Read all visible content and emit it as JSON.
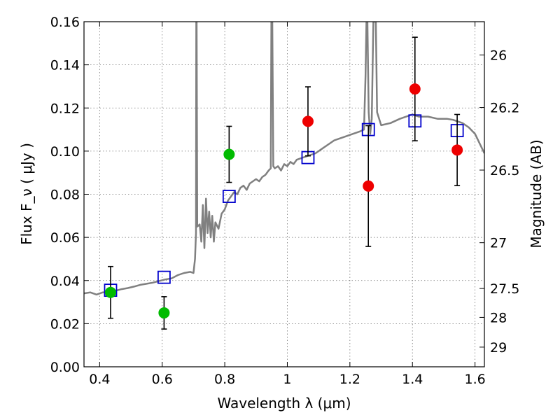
{
  "chart_data": {
    "type": "scatter",
    "xlabel": "Wavelength  λ (μm)",
    "ylabel": "Flux  F_ν  ( μJy )",
    "ylabel_right": "Magnitude (AB)",
    "xlim": [
      0.35,
      1.63
    ],
    "ylim": [
      0.0,
      0.16
    ],
    "grid": true,
    "x_ticks": [
      {
        "value": 0.4,
        "label": "0.4"
      },
      {
        "value": 0.6,
        "label": "0.6"
      },
      {
        "value": 0.8,
        "label": "0.8"
      },
      {
        "value": 1.0,
        "label": "1"
      },
      {
        "value": 1.2,
        "label": "1.2"
      },
      {
        "value": 1.4,
        "label": "1.4"
      },
      {
        "value": 1.6,
        "label": "1.6"
      }
    ],
    "y_ticks": [
      {
        "value": 0.0,
        "label": "0.00"
      },
      {
        "value": 0.02,
        "label": "0.02"
      },
      {
        "value": 0.04,
        "label": "0.04"
      },
      {
        "value": 0.06,
        "label": "0.06"
      },
      {
        "value": 0.08,
        "label": "0.08"
      },
      {
        "value": 0.1,
        "label": "0.10"
      },
      {
        "value": 0.12,
        "label": "0.12"
      },
      {
        "value": 0.14,
        "label": "0.14"
      },
      {
        "value": 0.16,
        "label": "0.16"
      }
    ],
    "right_ticks": [
      {
        "value": 26,
        "label": "26"
      },
      {
        "value": 26.2,
        "label": "26.2"
      },
      {
        "value": 26.5,
        "label": "26.5"
      },
      {
        "value": 27,
        "label": "27"
      },
      {
        "value": 27.5,
        "label": "27.5"
      },
      {
        "value": 28,
        "label": "28"
      },
      {
        "value": 29,
        "label": "29"
      }
    ],
    "colors": {
      "spectrum": "#808080",
      "green_points": "#00bb00",
      "red_points": "#ee0000",
      "model_boxes": "#0000cc",
      "errorbars": "#000000"
    },
    "green_points": [
      {
        "x": 0.435,
        "y": 0.0345,
        "yerr": 0.012
      },
      {
        "x": 0.606,
        "y": 0.025,
        "yerr": 0.0075
      },
      {
        "x": 0.814,
        "y": 0.0985,
        "yerr": 0.013
      }
    ],
    "red_points": [
      {
        "x": 1.066,
        "y": 0.1138,
        "yerr": 0.016
      },
      {
        "x": 1.259,
        "y": 0.0838,
        "yerr": 0.028
      },
      {
        "x": 1.408,
        "y": 0.1288,
        "yerr": 0.024
      },
      {
        "x": 1.543,
        "y": 0.1005,
        "yerr": 0.0165
      }
    ],
    "model_points": [
      {
        "x": 0.435,
        "y": 0.0355
      },
      {
        "x": 0.606,
        "y": 0.0415
      },
      {
        "x": 0.814,
        "y": 0.079
      },
      {
        "x": 1.066,
        "y": 0.097
      },
      {
        "x": 1.259,
        "y": 0.11
      },
      {
        "x": 1.408,
        "y": 0.114
      },
      {
        "x": 1.543,
        "y": 0.1095
      }
    ],
    "spectrum": [
      [
        0.35,
        0.034
      ],
      [
        0.37,
        0.0345
      ],
      [
        0.39,
        0.0335
      ],
      [
        0.41,
        0.0345
      ],
      [
        0.43,
        0.0348
      ],
      [
        0.45,
        0.0352
      ],
      [
        0.47,
        0.036
      ],
      [
        0.49,
        0.0365
      ],
      [
        0.51,
        0.0372
      ],
      [
        0.53,
        0.038
      ],
      [
        0.55,
        0.0385
      ],
      [
        0.57,
        0.039
      ],
      [
        0.59,
        0.0398
      ],
      [
        0.61,
        0.0405
      ],
      [
        0.63,
        0.041
      ],
      [
        0.65,
        0.0425
      ],
      [
        0.67,
        0.0435
      ],
      [
        0.69,
        0.044
      ],
      [
        0.7,
        0.0435
      ],
      [
        0.705,
        0.05
      ],
      [
        0.708,
        0.062
      ],
      [
        0.709,
        0.16
      ],
      [
        0.71,
        0.16
      ],
      [
        0.712,
        0.065
      ],
      [
        0.72,
        0.066
      ],
      [
        0.725,
        0.058
      ],
      [
        0.73,
        0.075
      ],
      [
        0.735,
        0.055
      ],
      [
        0.74,
        0.078
      ],
      [
        0.745,
        0.062
      ],
      [
        0.75,
        0.072
      ],
      [
        0.755,
        0.06
      ],
      [
        0.76,
        0.07
      ],
      [
        0.765,
        0.058
      ],
      [
        0.77,
        0.067
      ],
      [
        0.78,
        0.064
      ],
      [
        0.79,
        0.071
      ],
      [
        0.8,
        0.073
      ],
      [
        0.81,
        0.077
      ],
      [
        0.82,
        0.079
      ],
      [
        0.83,
        0.081
      ],
      [
        0.84,
        0.08
      ],
      [
        0.85,
        0.083
      ],
      [
        0.86,
        0.084
      ],
      [
        0.87,
        0.082
      ],
      [
        0.88,
        0.085
      ],
      [
        0.89,
        0.086
      ],
      [
        0.9,
        0.087
      ],
      [
        0.91,
        0.086
      ],
      [
        0.92,
        0.088
      ],
      [
        0.93,
        0.089
      ],
      [
        0.94,
        0.091
      ],
      [
        0.947,
        0.092
      ],
      [
        0.949,
        0.16
      ],
      [
        0.952,
        0.16
      ],
      [
        0.955,
        0.093
      ],
      [
        0.96,
        0.092
      ],
      [
        0.97,
        0.093
      ],
      [
        0.98,
        0.091
      ],
      [
        0.99,
        0.094
      ],
      [
        1.0,
        0.093
      ],
      [
        1.01,
        0.095
      ],
      [
        1.02,
        0.094
      ],
      [
        1.03,
        0.096
      ],
      [
        1.05,
        0.097
      ],
      [
        1.07,
        0.098
      ],
      [
        1.09,
        0.099
      ],
      [
        1.11,
        0.101
      ],
      [
        1.13,
        0.103
      ],
      [
        1.15,
        0.105
      ],
      [
        1.17,
        0.106
      ],
      [
        1.19,
        0.107
      ],
      [
        1.21,
        0.108
      ],
      [
        1.23,
        0.109
      ],
      [
        1.245,
        0.11
      ],
      [
        1.25,
        0.135
      ],
      [
        1.253,
        0.16
      ],
      [
        1.256,
        0.16
      ],
      [
        1.26,
        0.118
      ],
      [
        1.265,
        0.108
      ],
      [
        1.27,
        0.115
      ],
      [
        1.275,
        0.16
      ],
      [
        1.283,
        0.16
      ],
      [
        1.287,
        0.118
      ],
      [
        1.3,
        0.112
      ],
      [
        1.33,
        0.113
      ],
      [
        1.36,
        0.115
      ],
      [
        1.38,
        0.116
      ],
      [
        1.4,
        0.117
      ],
      [
        1.42,
        0.116
      ],
      [
        1.45,
        0.116
      ],
      [
        1.48,
        0.115
      ],
      [
        1.51,
        0.115
      ],
      [
        1.53,
        0.1145
      ],
      [
        1.56,
        0.113
      ],
      [
        1.58,
        0.111
      ],
      [
        1.6,
        0.108
      ],
      [
        1.62,
        0.102
      ],
      [
        1.63,
        0.099
      ]
    ]
  }
}
